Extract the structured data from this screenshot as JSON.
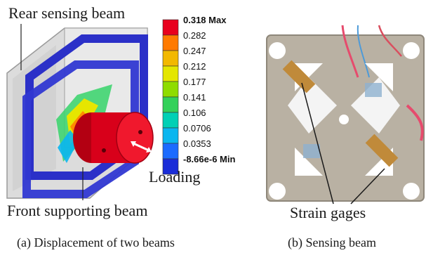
{
  "left_panel": {
    "rear_label": "Rear sensing beam",
    "front_label": "Front supporting beam",
    "loading_label": "Loading",
    "caption": "(a) Displacement of two beams",
    "legend": {
      "colors": [
        "#e8001d",
        "#ff7a00",
        "#f2b800",
        "#e4e600",
        "#8fdc00",
        "#33d15a",
        "#00d0b5",
        "#0ab6ef",
        "#1b6bff",
        "#1a2dd8"
      ],
      "labels": [
        {
          "text": "0.318 Max",
          "bold": true
        },
        {
          "text": "0.282",
          "bold": false
        },
        {
          "text": "0.247",
          "bold": false
        },
        {
          "text": "0.212",
          "bold": false
        },
        {
          "text": "0.177",
          "bold": false
        },
        {
          "text": "0.141",
          "bold": false
        },
        {
          "text": "0.106",
          "bold": false
        },
        {
          "text": "0.0706",
          "bold": false
        },
        {
          "text": "0.0353",
          "bold": false
        },
        {
          "text": "-8.66e-6 Min",
          "bold": true
        }
      ]
    }
  },
  "right_panel": {
    "gages_label": "Strain gages",
    "caption": "(b) Sensing beam"
  }
}
